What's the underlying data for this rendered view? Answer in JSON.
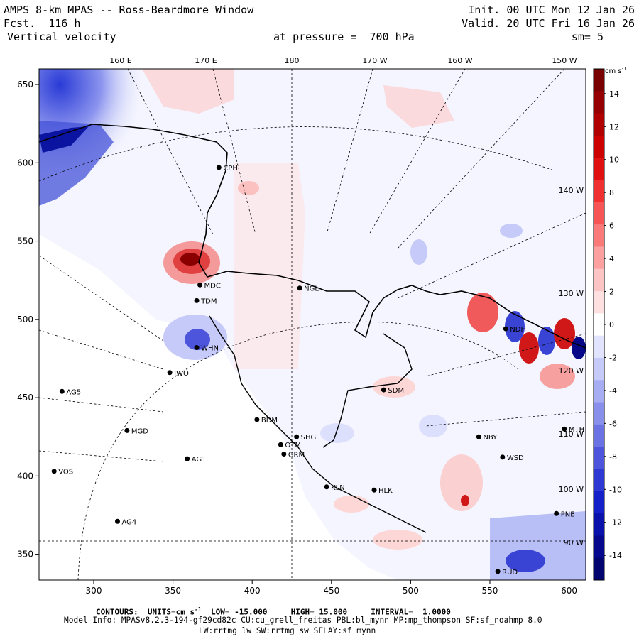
{
  "header": {
    "title": "AMPS 8-km MPAS -- Ross-Beardmore Window",
    "fcst_label": "Fcst.",
    "fcst_value": "116 h",
    "variable": "Vertical velocity",
    "init": "Init. 00 UTC Mon 12 Jan 26",
    "valid": "Valid. 20 UTC Fri 16 Jan 26",
    "pressure_label": "at pressure =",
    "pressure_value": "700 hPa",
    "smoothing": "sm= 5"
  },
  "map": {
    "top_lon_labels": [
      "160 E",
      "170 E",
      "180",
      "170 W",
      "160 W",
      "150 W"
    ],
    "right_lon_labels": [
      "140 W",
      "130 W",
      "120 W",
      "110 W",
      "100 W",
      "90 W"
    ],
    "x_ticks": [
      300,
      350,
      400,
      450,
      500,
      550,
      600
    ],
    "y_ticks": [
      650,
      600,
      550,
      500,
      450,
      400,
      350
    ],
    "stations": [
      {
        "id": "MDC",
        "x": 367,
        "y": 522
      },
      {
        "id": "TDM",
        "x": 365,
        "y": 512
      },
      {
        "id": "WHN",
        "x": 365,
        "y": 482
      },
      {
        "id": "IWO",
        "x": 348,
        "y": 466
      },
      {
        "id": "AG5",
        "x": 280,
        "y": 454
      },
      {
        "id": "MGD",
        "x": 321,
        "y": 429
      },
      {
        "id": "AG1",
        "x": 359,
        "y": 411
      },
      {
        "id": "VOS",
        "x": 275,
        "y": 403
      },
      {
        "id": "AG4",
        "x": 315,
        "y": 371
      },
      {
        "id": "CPH",
        "x": 379,
        "y": 597
      },
      {
        "id": "NGL",
        "x": 430,
        "y": 520
      },
      {
        "id": "SDM",
        "x": 483,
        "y": 455
      },
      {
        "id": "BDM",
        "x": 403,
        "y": 436
      },
      {
        "id": "SHG",
        "x": 428,
        "y": 425
      },
      {
        "id": "OTM",
        "x": 418,
        "y": 420
      },
      {
        "id": "GRM",
        "x": 420,
        "y": 414
      },
      {
        "id": "KLN",
        "x": 447,
        "y": 393
      },
      {
        "id": "HLK",
        "x": 477,
        "y": 391
      },
      {
        "id": "NBY",
        "x": 543,
        "y": 425
      },
      {
        "id": "WSD",
        "x": 558,
        "y": 412
      },
      {
        "id": "MTH",
        "x": 597,
        "y": 430
      },
      {
        "id": "PNE",
        "x": 592,
        "y": 376
      },
      {
        "id": "RUD",
        "x": 555,
        "y": 339
      },
      {
        "id": "NDH",
        "x": 560,
        "y": 494
      }
    ]
  },
  "colorbar": {
    "units": "cm s",
    "units_exp": "-1",
    "labels": [
      "14",
      "12",
      "10",
      "8",
      "6",
      "4",
      "2",
      "0",
      "-2",
      "-4",
      "-6",
      "-8",
      "-10",
      "-12",
      "-14"
    ],
    "colors": [
      "#7a0000",
      "#960000",
      "#b00000",
      "#cc0000",
      "#e01010",
      "#f03030",
      "#f75555",
      "#fa7a7a",
      "#fca0a0",
      "#fdc4c4",
      "#fee0e0",
      "#ffffff",
      "#e2e4fe",
      "#c6caf9",
      "#a6adf3",
      "#8890ec",
      "#6a72e4",
      "#4c55dc",
      "#2e38d2",
      "#1420c8",
      "#0a12ac",
      "#06088e",
      "#020470"
    ]
  },
  "footer": {
    "contours_label": "CONTOURS:",
    "units_label": "UNITS=cm s",
    "units_exp": "-1",
    "low_label": "LOW=",
    "low_value": "-15.000",
    "high_label": "HIGH=",
    "high_value": "15.000",
    "interval_label": "INTERVAL=",
    "interval_value": "1.0000",
    "model_info": "Model Info: MPASv8.2.3-194-gf29cd82c CU:cu_grell_freitas PBL:bl_mynn MP:mp_thompson SF:sf_noahmp 8.0",
    "model_info2": "LW:rrtmg_lw SW:rrtmg_sw SFLAY:sf_mynn"
  }
}
